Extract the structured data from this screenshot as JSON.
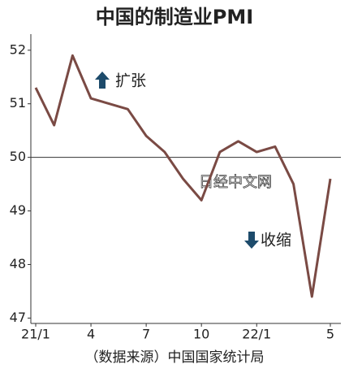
{
  "chart_data": {
    "type": "line",
    "title": "中国的制造业PMI",
    "categories": [
      "21/1",
      null,
      null,
      "4",
      null,
      null,
      "7",
      null,
      null,
      "10",
      null,
      null,
      "22/1",
      null,
      null,
      null,
      "5"
    ],
    "series": [
      {
        "name": "PMI",
        "color": "#7a4a44",
        "values": [
          51.3,
          50.6,
          51.9,
          51.1,
          51.0,
          50.9,
          50.4,
          50.1,
          49.6,
          49.2,
          50.1,
          50.3,
          50.1,
          50.2,
          49.5,
          47.4,
          49.6
        ]
      }
    ],
    "ylim": [
      46.9,
      52.3
    ],
    "yticks": [
      47,
      48,
      49,
      50,
      51,
      52
    ],
    "reference_line": 50,
    "annotations": {
      "expand": "扩张",
      "contract": "收缩",
      "watermark": "日经中文网"
    },
    "source": "（数据来源）中国国家统计局"
  }
}
